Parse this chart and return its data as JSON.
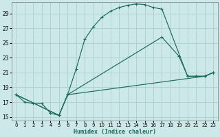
{
  "xlabel": "Humidex (Indice chaleur)",
  "xlim": [
    -0.5,
    23.5
  ],
  "ylim": [
    14.5,
    30.5
  ],
  "yticks": [
    15,
    17,
    19,
    21,
    23,
    25,
    27,
    29
  ],
  "xticks": [
    0,
    1,
    2,
    3,
    4,
    5,
    6,
    7,
    8,
    9,
    10,
    11,
    12,
    13,
    14,
    15,
    16,
    17,
    18,
    19,
    20,
    21,
    22,
    23
  ],
  "bg_color": "#cce8e8",
  "grid_color": "#aad0d0",
  "line_color": "#1a6b5a",
  "line1_x": [
    0,
    1,
    2,
    3,
    4,
    5,
    6,
    7,
    8,
    9,
    10,
    11,
    12,
    13,
    14,
    15,
    16,
    17,
    20,
    21,
    22,
    23
  ],
  "line1_y": [
    18.0,
    17.0,
    16.8,
    16.8,
    15.5,
    15.2,
    18.0,
    21.5,
    25.5,
    27.2,
    28.5,
    29.3,
    29.8,
    30.1,
    30.3,
    30.2,
    29.8,
    29.6,
    20.5,
    20.5,
    20.5,
    21.0
  ],
  "line2_x": [
    0,
    5,
    6,
    17,
    19,
    20,
    21,
    22,
    23
  ],
  "line2_y": [
    18.0,
    15.2,
    18.0,
    25.8,
    23.2,
    20.5,
    20.5,
    20.5,
    21.0
  ],
  "line3_x": [
    0,
    5,
    6,
    22,
    23
  ],
  "line3_y": [
    18.0,
    15.2,
    18.0,
    20.5,
    21.0
  ]
}
